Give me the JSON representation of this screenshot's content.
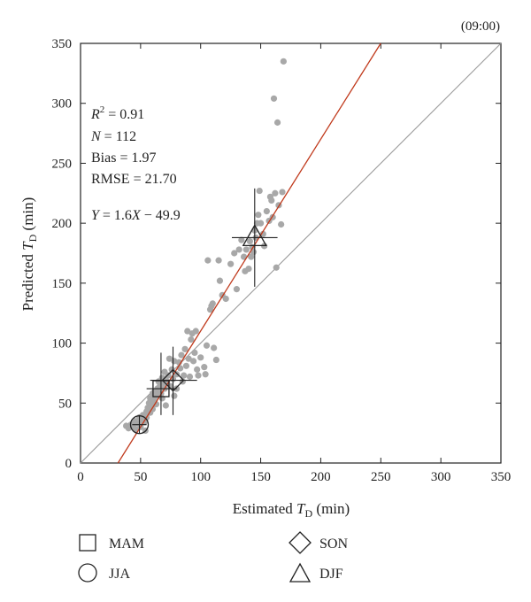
{
  "chart_data": {
    "type": "scatter",
    "title": "",
    "corner_label": "(09:00)",
    "xlabel": {
      "prefix": "Estimated ",
      "var": "T",
      "sub": "D",
      "suffix": " (min)"
    },
    "ylabel": {
      "prefix": "Predicted ",
      "var": "T",
      "sub": "D",
      "suffix": " (min)"
    },
    "xlim": [
      0,
      350
    ],
    "ylim": [
      0,
      350
    ],
    "xticks": [
      0,
      50,
      100,
      150,
      200,
      250,
      300,
      350
    ],
    "yticks": [
      0,
      50,
      100,
      150,
      200,
      250,
      300,
      350
    ],
    "grid": false,
    "stats": {
      "r2": {
        "var": "R",
        "sup": "2",
        "rest": " = 0.91"
      },
      "n": {
        "var": "N",
        "rest": " = 112"
      },
      "bias": "Bias = 1.97",
      "rmse": "RMSE = 21.70",
      "fit": {
        "y": "Y",
        "mid": " = 1.6",
        "x": "X",
        "rest": " − 49.9"
      }
    },
    "reference_line": {
      "slope": 1,
      "intercept": 0,
      "color": "#9a9a9a"
    },
    "fit_line": {
      "slope": 1.6,
      "intercept": -49.9,
      "color": "#c0391b"
    },
    "point_color": "#a8a8a8",
    "points": [
      [
        38,
        31
      ],
      [
        40,
        29
      ],
      [
        42,
        32
      ],
      [
        44,
        30
      ],
      [
        45,
        35
      ],
      [
        46,
        28
      ],
      [
        48,
        33
      ],
      [
        49,
        38
      ],
      [
        50,
        30
      ],
      [
        51,
        36
      ],
      [
        52,
        40
      ],
      [
        53,
        34
      ],
      [
        54,
        27
      ],
      [
        55,
        43
      ],
      [
        55,
        38
      ],
      [
        56,
        46
      ],
      [
        57,
        50
      ],
      [
        58,
        42
      ],
      [
        58,
        54
      ],
      [
        59,
        48
      ],
      [
        60,
        45
      ],
      [
        60,
        58
      ],
      [
        61,
        52
      ],
      [
        62,
        60
      ],
      [
        62,
        55
      ],
      [
        63,
        49
      ],
      [
        64,
        62
      ],
      [
        65,
        57
      ],
      [
        65,
        68
      ],
      [
        66,
        64
      ],
      [
        67,
        58
      ],
      [
        68,
        54
      ],
      [
        68,
        71
      ],
      [
        69,
        66
      ],
      [
        70,
        62
      ],
      [
        70,
        76
      ],
      [
        71,
        48
      ],
      [
        72,
        68
      ],
      [
        73,
        73
      ],
      [
        74,
        87
      ],
      [
        75,
        64
      ],
      [
        76,
        78
      ],
      [
        77,
        70
      ],
      [
        78,
        56
      ],
      [
        78,
        85
      ],
      [
        80,
        74
      ],
      [
        80,
        62
      ],
      [
        82,
        84
      ],
      [
        83,
        79
      ],
      [
        84,
        90
      ],
      [
        85,
        68
      ],
      [
        86,
        73
      ],
      [
        87,
        95
      ],
      [
        88,
        81
      ],
      [
        89,
        110
      ],
      [
        90,
        87
      ],
      [
        91,
        72
      ],
      [
        92,
        103
      ],
      [
        93,
        108
      ],
      [
        94,
        85
      ],
      [
        95,
        92
      ],
      [
        96,
        110
      ],
      [
        97,
        78
      ],
      [
        98,
        73
      ],
      [
        100,
        88
      ],
      [
        103,
        80
      ],
      [
        104,
        74
      ],
      [
        105,
        98
      ],
      [
        106,
        169
      ],
      [
        108,
        128
      ],
      [
        109,
        131
      ],
      [
        110,
        133
      ],
      [
        111,
        96
      ],
      [
        113,
        86
      ],
      [
        115,
        169
      ],
      [
        116,
        152
      ],
      [
        118,
        140
      ],
      [
        121,
        137
      ],
      [
        125,
        166
      ],
      [
        128,
        175
      ],
      [
        130,
        145
      ],
      [
        132,
        178
      ],
      [
        134,
        186
      ],
      [
        136,
        172
      ],
      [
        137,
        160
      ],
      [
        138,
        178
      ],
      [
        140,
        162
      ],
      [
        141,
        185
      ],
      [
        142,
        172
      ],
      [
        143,
        180
      ],
      [
        144,
        176
      ],
      [
        145,
        194
      ],
      [
        146,
        188
      ],
      [
        147,
        200
      ],
      [
        148,
        207
      ],
      [
        149,
        227
      ],
      [
        150,
        200
      ],
      [
        152,
        191
      ],
      [
        153,
        181
      ],
      [
        155,
        210
      ],
      [
        157,
        202
      ],
      [
        158,
        222
      ],
      [
        159,
        219
      ],
      [
        160,
        205
      ],
      [
        161,
        304
      ],
      [
        162,
        225
      ],
      [
        163,
        163
      ],
      [
        164,
        284
      ],
      [
        165,
        215
      ],
      [
        167,
        199
      ],
      [
        168,
        226
      ],
      [
        169,
        335
      ]
    ],
    "markers": [
      {
        "season": "MAM",
        "shape": "square",
        "x": 67,
        "y": 62,
        "x_err": [
          55,
          80
        ],
        "y_err": [
          40,
          92
        ]
      },
      {
        "season": "JJA",
        "shape": "circle",
        "x": 49,
        "y": 32,
        "x_err": [
          43,
          55
        ],
        "y_err": [
          25,
          40
        ]
      },
      {
        "season": "SON",
        "shape": "diamond",
        "x": 77,
        "y": 69,
        "x_err": [
          58,
          97
        ],
        "y_err": [
          40,
          97
        ]
      },
      {
        "season": "DJF",
        "shape": "triangle",
        "x": 145,
        "y": 188,
        "x_err": [
          126,
          164
        ],
        "y_err": [
          147,
          229
        ]
      }
    ],
    "legend": {
      "placement": "bottom",
      "entries": [
        {
          "shape": "square",
          "label": "MAM"
        },
        {
          "shape": "circle",
          "label": "JJA"
        },
        {
          "shape": "diamond",
          "label": "SON"
        },
        {
          "shape": "triangle",
          "label": "DJF"
        }
      ]
    }
  }
}
